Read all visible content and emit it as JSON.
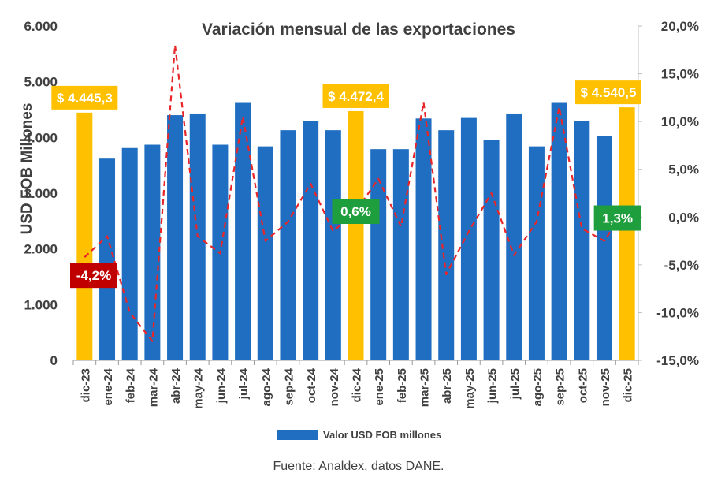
{
  "chart_data": {
    "type": "bar",
    "title": "Variación mensual de las exportaciones",
    "ylabel": "USD FOB Millones",
    "ylim": [
      0,
      6000
    ],
    "y2lim": [
      -15,
      20
    ],
    "y_ticks": [
      "0",
      "1.000",
      "2.000",
      "3.000",
      "4.000",
      "5.000",
      "6.000"
    ],
    "y2_ticks": [
      "-15,0%",
      "-10,0%",
      "-5,0%",
      "0,0%",
      "5,0%",
      "10,0%",
      "15,0%",
      "20,0%"
    ],
    "categories": [
      "dic-23",
      "ene-24",
      "feb-24",
      "mar-24",
      "abr-24",
      "may-24",
      "jun-24",
      "jul-24",
      "ago-24",
      "sep-24",
      "oct-24",
      "nov-24",
      "dic-24",
      "ene-25",
      "feb-25",
      "mar-25",
      "abr-25",
      "may-25",
      "jun-25",
      "jul-25",
      "ago-25",
      "sep-25",
      "oct-25",
      "nov-25",
      "dic-25"
    ],
    "series": [
      {
        "name": "Valor USD FOB millones",
        "axis": "left",
        "kind": "bar",
        "values": [
          4445.3,
          3620,
          3810,
          3870,
          4400,
          4430,
          3870,
          4620,
          3840,
          4130,
          4300,
          4130,
          4472.4,
          3790,
          3790,
          4340,
          4130,
          4350,
          3960,
          4430,
          3840,
          4620,
          4290,
          4020,
          4540.5
        ]
      },
      {
        "name": "Variación mensual (%)",
        "axis": "right",
        "kind": "line",
        "values": [
          -4.2,
          -2.0,
          -10.0,
          -13.0,
          18.0,
          -2.0,
          -3.8,
          10.5,
          -2.5,
          -0.5,
          3.5,
          -1.5,
          0.6,
          4.0,
          -1.0,
          12.0,
          -6.0,
          -1.5,
          2.5,
          -4.0,
          -0.5,
          11.5,
          -1.2,
          -2.5,
          1.3
        ]
      }
    ],
    "highlight_color": "#FFC000",
    "bar_color": "#1F6EC1",
    "line_color": "#E8262A",
    "highlights": [
      {
        "category": "dic-23",
        "label": "$ 4.445,3"
      },
      {
        "category": "dic-24",
        "label": "$ 4.472,4"
      },
      {
        "category": "dic-25",
        "label": "$ 4.540,5"
      }
    ],
    "pct_labels": [
      {
        "category": "dic-23",
        "label": "-4,2%",
        "color": "#C00000"
      },
      {
        "category": "dic-24",
        "label": "0,6%",
        "color": "#1E9E3C"
      },
      {
        "category": "dic-25",
        "label": "1,3%",
        "color": "#1E9E3C"
      }
    ],
    "legend": "Valor USD FOB millones",
    "source": "Fuente: Analdex, datos DANE."
  }
}
